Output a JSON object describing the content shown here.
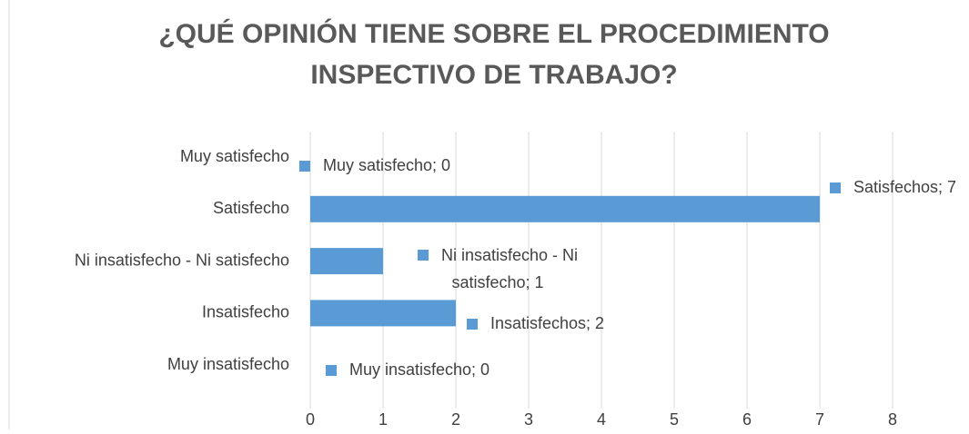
{
  "chart_data": {
    "type": "hbar",
    "title": [
      "¿QUÉ OPINIÓN TIENE SOBRE EL PROCEDIMIENTO",
      "INSPECTIVO DE TRABAJO?"
    ],
    "categories": [
      "Muy satisfecho",
      "Satisfecho",
      "Ni insatisfecho - Ni satisfecho",
      "Insatisfecho",
      "Muy insatisfecho"
    ],
    "values": [
      0,
      7,
      1,
      2,
      0
    ],
    "value_labels": [
      "Muy satisfecho; 0",
      "Satisfechos; 7",
      "Ni insatisfecho - Ni satisfecho; 1",
      "Insatisfechos; 2",
      "Muy insatisfecho; 0"
    ],
    "color": "#5b9bd5",
    "xlim": [
      0,
      9
    ],
    "xticks": [
      0,
      1,
      2,
      3,
      4,
      5,
      6,
      7,
      8
    ],
    "grid": true
  }
}
